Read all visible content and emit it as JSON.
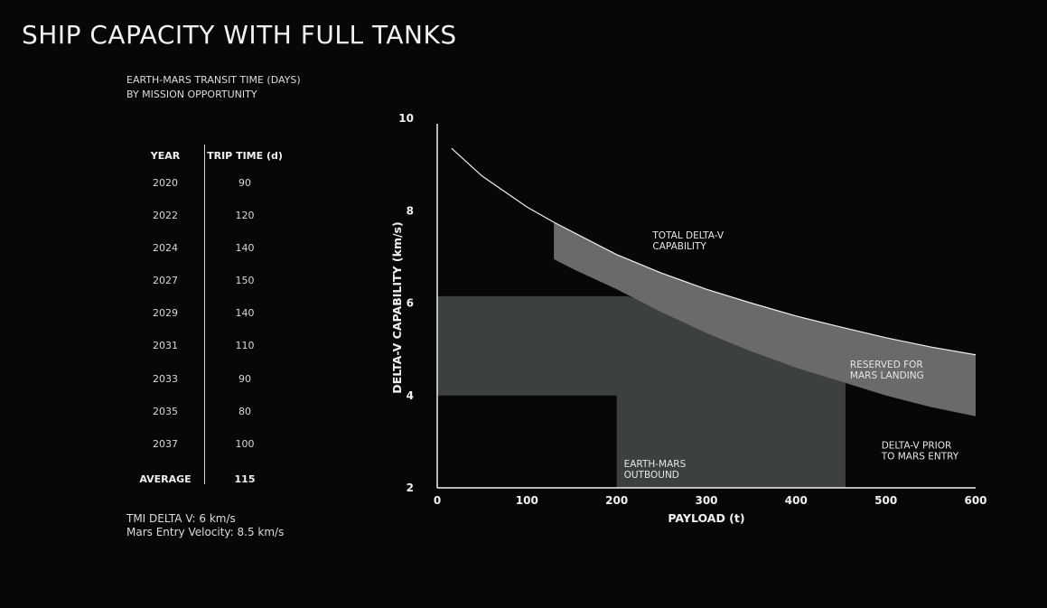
{
  "page": {
    "title": "SHIP CAPACITY WITH FULL TANKS",
    "subtitle_lines": [
      "EARTH-MARS TRANSIT TIME (DAYS)",
      "BY MISSION OPPORTUNITY"
    ],
    "notes": [
      "TMI DELTA V: 6 km/s",
      "Mars Entry Velocity: 8.5 km/s"
    ]
  },
  "transit_table": {
    "headers": {
      "year": "YEAR",
      "trip": "TRIP TIME (d)"
    },
    "rows": [
      {
        "year": "2020",
        "trip": "90"
      },
      {
        "year": "2022",
        "trip": "120"
      },
      {
        "year": "2024",
        "trip": "140"
      },
      {
        "year": "2027",
        "trip": "150"
      },
      {
        "year": "2029",
        "trip": "140"
      },
      {
        "year": "2031",
        "trip": "110"
      },
      {
        "year": "2033",
        "trip": "90"
      },
      {
        "year": "2035",
        "trip": "80"
      },
      {
        "year": "2037",
        "trip": "100"
      }
    ],
    "average": {
      "label": "AVERAGE",
      "value": "115"
    }
  },
  "chart_data": {
    "type": "area",
    "xlabel": "PAYLOAD (t)",
    "ylabel": "DELTA-V CAPABILITY (km/s)",
    "xlim": [
      0,
      600
    ],
    "ylim": [
      2,
      10
    ],
    "x_ticks": [
      "0",
      "100",
      "200",
      "300",
      "400",
      "500",
      "600"
    ],
    "y_ticks": [
      "2",
      "4",
      "6",
      "8",
      "10"
    ],
    "series": [
      {
        "name": "TOTAL DELTA-V CAPABILITY",
        "x": [
          16,
          50,
          100,
          130,
          150,
          200,
          250,
          300,
          350,
          400,
          450,
          500,
          550,
          600
        ],
        "y": [
          9.35,
          8.75,
          8.08,
          7.75,
          7.55,
          7.05,
          6.65,
          6.3,
          6.0,
          5.72,
          5.48,
          5.25,
          5.05,
          4.88
        ]
      },
      {
        "name": "DELTA-V PRIOR TO MARS ENTRY",
        "x": [
          130,
          150,
          200,
          250,
          300,
          350,
          400,
          450,
          500,
          550,
          600
        ],
        "y": [
          6.95,
          6.75,
          6.3,
          5.8,
          5.35,
          4.95,
          4.6,
          4.3,
          4.0,
          3.75,
          3.55
        ]
      }
    ],
    "regions": [
      {
        "name": "RESERVED FOR MARS LANDING",
        "color": "#6a6a6a"
      },
      {
        "name": "EARTH-MARS OUTBOUND",
        "color": "#3c4140",
        "x_min": 0,
        "x_max": 455,
        "y_upper": 6.15,
        "step_x": 200,
        "step_y": 4.0
      }
    ],
    "annotations": [
      {
        "lines": [
          "TOTAL DELTA-V",
          "CAPABILITY"
        ],
        "x": 240,
        "y": 7.4
      },
      {
        "lines": [
          "RESERVED FOR",
          "MARS LANDING"
        ],
        "x": 460,
        "y": 4.6
      },
      {
        "lines": [
          "EARTH-MARS",
          "OUTBOUND"
        ],
        "x": 208,
        "y": 2.45
      },
      {
        "lines": [
          "DELTA-V PRIOR",
          "TO MARS ENTRY"
        ],
        "x": 495,
        "y": 2.85
      }
    ],
    "grid": false,
    "colors": {
      "background": "#070707",
      "curve": "#f0f0f0",
      "axis": "#f0f0f0"
    }
  }
}
